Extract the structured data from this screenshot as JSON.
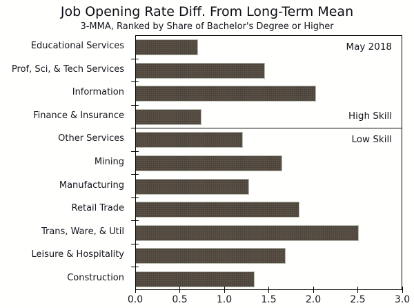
{
  "chart_data": {
    "type": "bar",
    "orientation": "horizontal",
    "title": "Job Opening Rate Diff. From Long-Term Mean",
    "subtitle": "3-MMA, Ranked by Share of Bachelor's Degree or Higher",
    "categories": [
      "Educational Services",
      "Prof, Sci, & Tech Services",
      "Information",
      "Finance & Insurance",
      "Other Services",
      "Mining",
      "Manufacturing",
      "Retail Trade",
      "Trans, Ware, & Util",
      "Leisure & Hospitality",
      "Construction"
    ],
    "values": [
      0.7,
      1.45,
      2.02,
      0.74,
      1.2,
      1.64,
      1.27,
      1.84,
      2.5,
      1.68,
      1.33
    ],
    "xlim": [
      0.0,
      3.0
    ],
    "xticks": [
      "0.0",
      "0.5",
      "1.0",
      "1.5",
      "2.0",
      "2.5",
      "3.0"
    ],
    "xtick_values": [
      0.0,
      0.5,
      1.0,
      1.5,
      2.0,
      2.5,
      3.0
    ],
    "annotations": [
      {
        "text": "May 2018",
        "row": 0
      },
      {
        "text": "High Skill",
        "row": 3
      },
      {
        "text": "Low Skill",
        "row": 4
      }
    ],
    "divider_after_index": 3,
    "bar_color": "#5b5147",
    "bar_texture_color": "#463f37",
    "bar_border_color": "#b9bdb3",
    "axis_color": "#000000",
    "text_color": "#14141e",
    "grid": false,
    "legend": null
  }
}
